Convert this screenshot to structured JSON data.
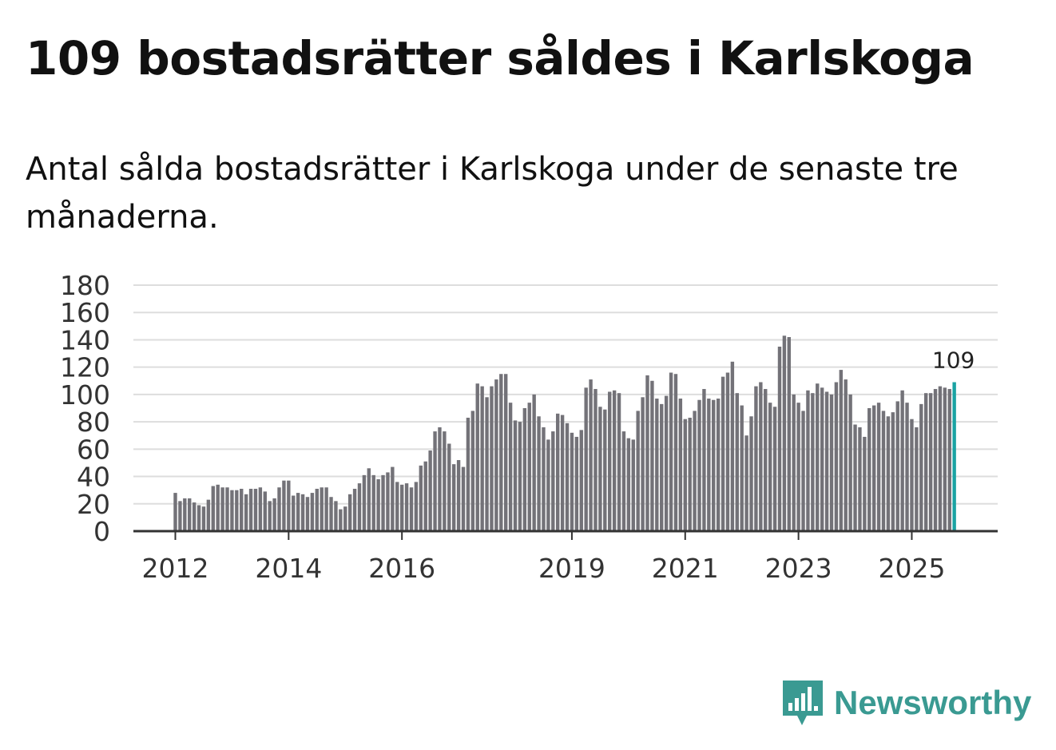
{
  "title": "109 bostadsrätter såldes i Karlskoga",
  "subtitle": "Antal sålda bostadsrätter i Karlskoga under de senaste tre månaderna.",
  "brand": {
    "name": "Newsworthy",
    "color": "#3a9a92",
    "icon": "bar-chart-speech-bubble-icon"
  },
  "colors": {
    "bar": "#737278",
    "highlight": "#1aa3a3",
    "grid": "#dddddd",
    "axis": "#333333"
  },
  "chart_data": {
    "type": "bar",
    "title": "Antal sålda bostadsrätter i Karlskoga",
    "xlabel": "",
    "ylabel": "",
    "ylim": [
      0,
      180
    ],
    "y_ticks": [
      "0",
      "20",
      "40",
      "60",
      "80",
      "100",
      "120",
      "140",
      "160",
      "180"
    ],
    "x_ticks": [
      {
        "label": "2012",
        "index": 0
      },
      {
        "label": "2014",
        "index": 24
      },
      {
        "label": "2016",
        "index": 48
      },
      {
        "label": "2019",
        "index": 84
      },
      {
        "label": "2021",
        "index": 108
      },
      {
        "label": "2023",
        "index": 132
      },
      {
        "label": "2025",
        "index": 156
      }
    ],
    "start_period": "2012-01",
    "values": [
      28,
      22,
      24,
      24,
      21,
      19,
      18,
      23,
      33,
      34,
      32,
      32,
      30,
      30,
      31,
      27,
      31,
      31,
      32,
      29,
      22,
      24,
      32,
      37,
      37,
      26,
      28,
      27,
      25,
      28,
      31,
      32,
      32,
      25,
      22,
      16,
      18,
      27,
      31,
      35,
      41,
      46,
      41,
      38,
      41,
      43,
      47,
      36,
      34,
      35,
      32,
      36,
      48,
      51,
      59,
      73,
      76,
      73,
      64,
      49,
      52,
      47,
      83,
      88,
      108,
      106,
      98,
      106,
      111,
      115,
      115,
      94,
      81,
      80,
      90,
      94,
      100,
      84,
      76,
      67,
      73,
      86,
      85,
      79,
      72,
      69,
      74,
      105,
      111,
      104,
      91,
      89,
      102,
      103,
      101,
      73,
      68,
      67,
      88,
      98,
      114,
      110,
      97,
      93,
      99,
      116,
      115,
      97,
      82,
      83,
      88,
      96,
      104,
      97,
      96,
      97,
      113,
      116,
      124,
      101,
      92,
      70,
      84,
      106,
      109,
      104,
      94,
      91,
      135,
      143,
      142,
      100,
      94,
      88,
      103,
      101,
      108,
      105,
      102,
      100,
      109,
      118,
      111,
      100,
      78,
      76,
      69,
      90,
      92,
      94,
      88,
      84,
      87,
      95,
      103,
      94,
      82,
      76,
      93,
      101,
      101,
      104,
      106,
      105,
      104,
      109
    ],
    "highlight_last": true,
    "last_value_label": "109"
  }
}
